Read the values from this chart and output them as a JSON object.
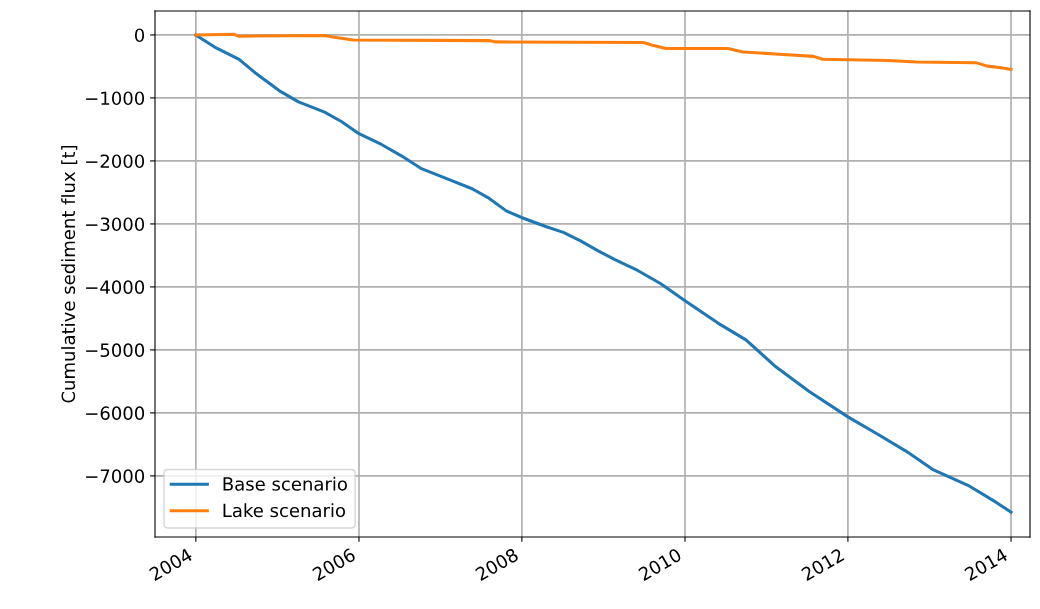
{
  "chart_data": {
    "type": "line",
    "ylabel": "Cumulative sediment flux [t]",
    "xlim": [
      "2003-07-02",
      "2014-03-27"
    ],
    "ylim": [
      -7970,
      380
    ],
    "xticks": [
      {
        "value": "2004-01-01",
        "label": "2004"
      },
      {
        "value": "2006-01-01",
        "label": "2006"
      },
      {
        "value": "2008-01-01",
        "label": "2008"
      },
      {
        "value": "2010-01-01",
        "label": "2010"
      },
      {
        "value": "2012-01-01",
        "label": "2012"
      },
      {
        "value": "2014-01-01",
        "label": "2014"
      }
    ],
    "yticks": [
      0,
      -1000,
      -2000,
      -3000,
      -4000,
      -5000,
      -6000,
      -7000
    ],
    "grid": true,
    "legend": "bottom left",
    "line_style": "solid",
    "marker": "none",
    "series": [
      {
        "name": "Base scenario",
        "color": "#1f77b4",
        "x": [
          "2004-01-01",
          "2004-04-01",
          "2004-07-13",
          "2004-09-27",
          "2005-01-08",
          "2005-04-05",
          "2005-07-31",
          "2005-10-16",
          "2006-01-01",
          "2006-04-12",
          "2006-07-10",
          "2006-10-05",
          "2007-01-15",
          "2007-05-23",
          "2007-08-08",
          "2007-10-23",
          "2008-01-08",
          "2008-04-20",
          "2008-07-05",
          "2008-09-20",
          "2008-12-06",
          "2009-02-21",
          "2009-06-03",
          "2009-09-13",
          "2010-01-01",
          "2010-05-27",
          "2010-10-01",
          "2011-02-06",
          "2011-07-10",
          "2012-01-01",
          "2012-05-12",
          "2012-09-17",
          "2013-01-19",
          "2013-06-22",
          "2013-10-27",
          "2014-01-01"
        ],
        "values": [
          0,
          -207,
          -387,
          -613,
          -883,
          -1063,
          -1225,
          -1378,
          -1568,
          -1739,
          -1919,
          -2117,
          -2261,
          -2441,
          -2595,
          -2793,
          -2910,
          -3045,
          -3135,
          -3270,
          -3423,
          -3568,
          -3739,
          -3946,
          -4220,
          -4570,
          -4840,
          -5250,
          -5656,
          -6063,
          -6335,
          -6606,
          -6905,
          -7149,
          -7421,
          -7575
        ]
      },
      {
        "name": "Lake scenario",
        "color": "#ff7f0e",
        "x": [
          "2004-01-01",
          "2004-06-18",
          "2004-07-13",
          "2005-07-31",
          "2005-09-20",
          "2005-12-06",
          "2007-08-08",
          "2007-09-02",
          "2009-06-29",
          "2009-08-04",
          "2009-10-08",
          "2010-07-13",
          "2010-09-17",
          "2011-02-28",
          "2011-07-31",
          "2011-09-10",
          "2012-06-29",
          "2012-11-03",
          "2013-07-27",
          "2013-09-17",
          "2013-11-18",
          "2014-01-01"
        ],
        "values": [
          0,
          10,
          -20,
          -10,
          -40,
          -80,
          -90,
          -110,
          -120,
          -160,
          -215,
          -215,
          -270,
          -305,
          -340,
          -385,
          -405,
          -430,
          -440,
          -495,
          -520,
          -550
        ]
      }
    ]
  }
}
